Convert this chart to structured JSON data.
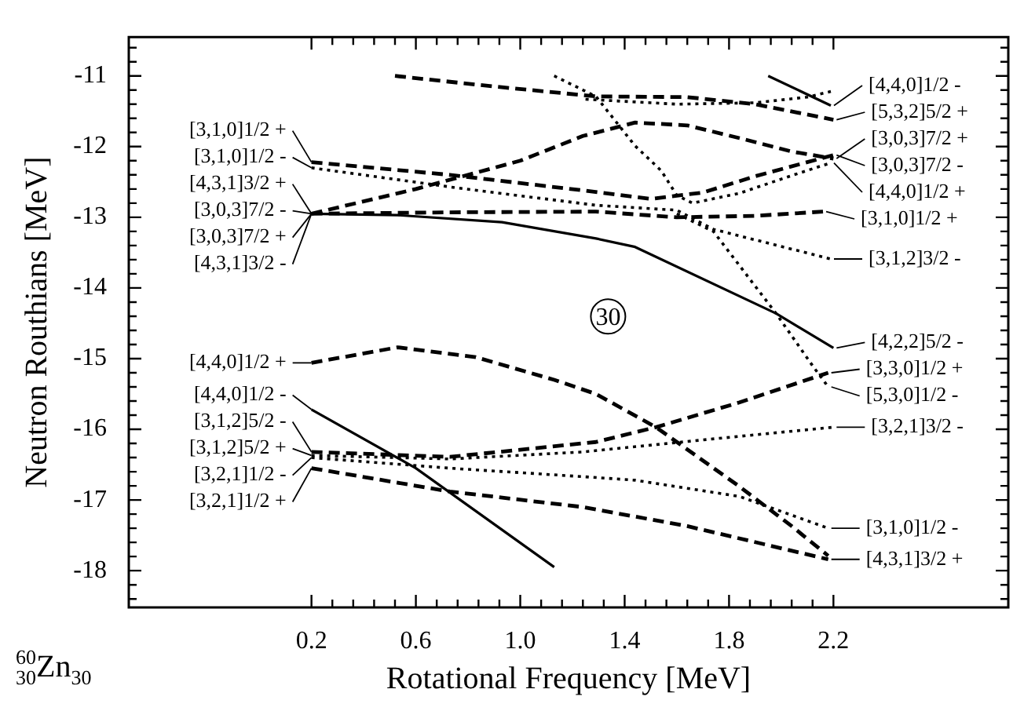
{
  "chart_data": {
    "type": "line",
    "xlabel": "Rotational Frequency [MeV]",
    "ylabel": "Neutron Routhians [MeV]",
    "xlim": [
      -0.5,
      2.87
    ],
    "ylim": [
      -18.52,
      -10.45
    ],
    "xticks": [
      0.2,
      {
        "value": 0.28,
        "label": null
      },
      {
        "value": 0.36,
        "label": null
      },
      {
        "value": 0.44,
        "label": null
      },
      {
        "value": 0.52,
        "label": null
      },
      0.6,
      {
        "value": 0.68,
        "label": null
      },
      {
        "value": 0.76,
        "label": null
      },
      {
        "value": 0.84,
        "label": null
      },
      {
        "value": 0.92,
        "label": null
      },
      {
        "value": 1,
        "label": "1.0"
      },
      {
        "value": 1.08,
        "label": null
      },
      {
        "value": 1.16,
        "label": null
      },
      {
        "value": 1.24,
        "label": null
      },
      {
        "value": 1.32,
        "label": null
      },
      1.4,
      {
        "value": 1.48,
        "label": null
      },
      {
        "value": 1.56,
        "label": null
      },
      {
        "value": 1.64,
        "label": null
      },
      {
        "value": 1.72,
        "label": null
      },
      1.8,
      {
        "value": 1.88,
        "label": null
      },
      {
        "value": 1.96,
        "label": null
      },
      {
        "value": 2.04,
        "label": null
      },
      {
        "value": 2.12,
        "label": null
      },
      2.2
    ],
    "yticks": [
      {
        "value": -10.6,
        "label": null
      },
      {
        "value": -10.8,
        "label": null
      },
      -11,
      {
        "value": -11.2,
        "label": null
      },
      {
        "value": -11.4,
        "label": null
      },
      {
        "value": -11.6,
        "label": null
      },
      {
        "value": -11.8,
        "label": null
      },
      -12,
      {
        "value": -12.2,
        "label": null
      },
      {
        "value": -12.4,
        "label": null
      },
      {
        "value": -12.6,
        "label": null
      },
      {
        "value": -12.8,
        "label": null
      },
      -13,
      {
        "value": -13.2,
        "label": null
      },
      {
        "value": -13.4,
        "label": null
      },
      {
        "value": -13.6,
        "label": null
      },
      {
        "value": -13.8,
        "label": null
      },
      -14,
      {
        "value": -14.2,
        "label": null
      },
      {
        "value": -14.4,
        "label": null
      },
      {
        "value": -14.6,
        "label": null
      },
      {
        "value": -14.8,
        "label": null
      },
      -15,
      {
        "value": -15.2,
        "label": null
      },
      {
        "value": -15.4,
        "label": null
      },
      {
        "value": -15.6,
        "label": null
      },
      {
        "value": -15.8,
        "label": null
      },
      -16,
      {
        "value": -16.2,
        "label": null
      },
      {
        "value": -16.4,
        "label": null
      },
      {
        "value": -16.6,
        "label": null
      },
      {
        "value": -16.8,
        "label": null
      },
      -17,
      {
        "value": -17.2,
        "label": null
      },
      {
        "value": -17.4,
        "label": null
      },
      {
        "value": -17.6,
        "label": null
      },
      {
        "value": -17.8,
        "label": null
      },
      -18,
      {
        "value": -18.2,
        "label": null
      },
      {
        "value": -18.4,
        "label": null
      }
    ],
    "marker": "none",
    "series": [
      {
        "color": "#000000",
        "line_style": "dashed",
        "x": [
          0.2,
          0.6,
          1.0,
          1.24,
          1.44,
          1.64,
          1.84,
          2.04,
          2.2
        ],
        "values": [
          -12.95,
          -12.6,
          -12.2,
          -11.85,
          -11.66,
          -11.7,
          -11.88,
          -12.07,
          -12.17
        ]
      },
      {
        "color": "#000000",
        "line_style": "dashed",
        "x": [
          0.2,
          0.73,
          1.24,
          1.5,
          1.7,
          1.9,
          2.2
        ],
        "values": [
          -12.22,
          -12.4,
          -12.62,
          -12.74,
          -12.65,
          -12.42,
          -12.12
        ]
      },
      {
        "color": "#000000",
        "line_style": "dotted",
        "x": [
          0.2,
          0.75,
          1.29,
          1.6,
          1.74,
          2.19
        ],
        "values": [
          -12.3,
          -12.58,
          -12.83,
          -12.9,
          -13.17,
          -13.59
        ]
      },
      {
        "color": "#000000",
        "line_style": "dashed",
        "x": [
          0.2,
          0.73,
          1.29,
          1.6,
          1.9,
          2.16
        ],
        "values": [
          -12.95,
          -12.93,
          -12.92,
          -13.0,
          -12.98,
          -12.92
        ]
      },
      {
        "color": "#000000",
        "line_style": "dotted",
        "x": [
          1.6,
          1.74,
          1.98,
          2.12,
          2.18
        ],
        "values": [
          -12.95,
          -13.2,
          -14.36,
          -15.1,
          -15.4
        ]
      },
      {
        "color": "#000000",
        "line_style": "solid",
        "x": [
          0.2,
          0.53,
          0.93,
          1.29,
          1.44,
          1.98,
          2.2
        ],
        "values": [
          -12.95,
          -12.97,
          -13.07,
          -13.3,
          -13.42,
          -14.36,
          -14.85
        ]
      },
      {
        "color": "#000000",
        "line_style": "dashed",
        "x": [
          0.52,
          0.9,
          1.29,
          1.64,
          1.9,
          2.2
        ],
        "values": [
          -11.0,
          -11.15,
          -11.29,
          -11.3,
          -11.4,
          -11.62
        ]
      },
      {
        "color": "#000000",
        "line_style": "dotted",
        "x": [
          1.25,
          1.6,
          1.9,
          2.1,
          2.19
        ],
        "values": [
          -11.33,
          -11.4,
          -11.38,
          -11.3,
          -11.22
        ]
      },
      {
        "color": "#000000",
        "line_style": "dotted",
        "x": [
          1.13,
          1.29,
          1.44,
          1.54,
          1.6,
          1.66,
          1.84,
          2.04,
          2.19
        ],
        "values": [
          -11.0,
          -11.29,
          -11.99,
          -12.34,
          -12.69,
          -12.8,
          -12.66,
          -12.41,
          -12.23
        ]
      },
      {
        "color": "#000000",
        "line_style": "solid",
        "x": [
          1.95,
          2.19
        ],
        "values": [
          -11.0,
          -11.42
        ]
      },
      {
        "color": "#000000",
        "line_style": "dashed",
        "x": [
          0.2,
          0.53,
          0.83,
          1.13,
          1.29,
          1.52,
          1.84,
          2.04,
          2.18
        ],
        "values": [
          -15.06,
          -14.84,
          -14.98,
          -15.3,
          -15.5,
          -15.97,
          -16.81,
          -17.37,
          -17.79
        ]
      },
      {
        "color": "#000000",
        "line_style": "solid",
        "x": [
          0.2,
          0.6,
          1.13
        ],
        "values": [
          -15.72,
          -16.55,
          -17.95
        ]
      },
      {
        "color": "#000000",
        "line_style": "dashed",
        "x": [
          0.2,
          0.73,
          1.29,
          1.52,
          1.84,
          2.18
        ],
        "values": [
          -16.32,
          -16.39,
          -16.18,
          -15.97,
          -15.62,
          -15.2
        ]
      },
      {
        "color": "#000000",
        "line_style": "dotted",
        "x": [
          0.2,
          0.73,
          1.24,
          1.7,
          2.2
        ],
        "values": [
          -16.37,
          -16.42,
          -16.32,
          -16.15,
          -15.97
        ]
      },
      {
        "color": "#000000",
        "line_style": "dotted",
        "x": [
          0.2,
          0.73,
          1.24,
          1.44,
          1.84,
          2.18
        ],
        "values": [
          -16.4,
          -16.55,
          -16.67,
          -16.72,
          -16.95,
          -17.4
        ]
      },
      {
        "color": "#000000",
        "line_style": "dashed",
        "x": [
          0.2,
          0.73,
          1.24,
          1.64,
          2.18
        ],
        "values": [
          -16.55,
          -16.88,
          -17.1,
          -17.37,
          -17.84
        ]
      }
    ],
    "annotations": [
      "$^{60}$$_{30}$Zn$_{30}$",
      "30",
      {
        "text": "[3,1,0]1/2 +",
        "x": 0.2,
        "y": -12.22
      },
      {
        "text": "[3,1,0]1/2 -",
        "x": 0.2,
        "y": -12.3
      },
      {
        "text": "[4,3,1]3/2 +",
        "x": 0.2,
        "y": -12.95
      },
      {
        "text": "[3,0,3]7/2 -",
        "x": 0.2,
        "y": -12.95
      },
      {
        "text": "[3,0,3]7/2 +",
        "x": 0.2,
        "y": -12.95
      },
      {
        "text": "[4,3,1]3/2 -",
        "x": 0.2,
        "y": -12.95
      },
      {
        "text": "[4,4,0]1/2 +",
        "x": 0.2,
        "y": -15.06
      },
      {
        "text": "[4,4,0]1/2 -",
        "x": 0.2,
        "y": -15.72
      },
      {
        "text": "[3,1,2]5/2 -",
        "x": 0.2,
        "y": -16.32
      },
      {
        "text": "[3,1,2]5/2 +",
        "x": 0.2,
        "y": -16.37
      },
      {
        "text": "[3,2,1]1/2 -",
        "x": 0.2,
        "y": -16.4
      },
      {
        "text": "[3,2,1]1/2 +",
        "x": 0.2,
        "y": -16.55
      },
      {
        "text": "[4,4,0]1/2 -",
        "x": 2.19,
        "y": -11.42
      },
      {
        "text": "[5,3,2]5/2 +",
        "x": 2.2,
        "y": -11.62
      },
      {
        "text": "[3,0,3]7/2 +",
        "x": 2.2,
        "y": -12.17
      },
      {
        "text": "[3,0,3]7/2 -",
        "x": 2.2,
        "y": -12.12
      },
      {
        "text": "[4,4,0]1/2 +",
        "x": 2.19,
        "y": -12.23
      },
      {
        "text": "[3,1,0]1/2 +",
        "x": 2.16,
        "y": -12.92
      },
      {
        "text": "[3,1,2]3/2 -",
        "x": 2.19,
        "y": -13.59
      },
      {
        "text": "[4,2,2]5/2 -",
        "x": 2.2,
        "y": -14.85
      },
      {
        "text": "[3,3,0]1/2 +",
        "x": 2.18,
        "y": -15.2
      },
      {
        "text": "[5,3,0]1/2 -",
        "x": 2.18,
        "y": -15.4
      },
      {
        "text": "[3,2,1]3/2 -",
        "x": 2.2,
        "y": -15.97
      },
      {
        "text": "[3,1,0]1/2 -",
        "x": 2.18,
        "y": -17.4
      },
      {
        "text": "[4,3,1]3/2 +",
        "x": 2.18,
        "y": -17.84
      }
    ]
  }
}
